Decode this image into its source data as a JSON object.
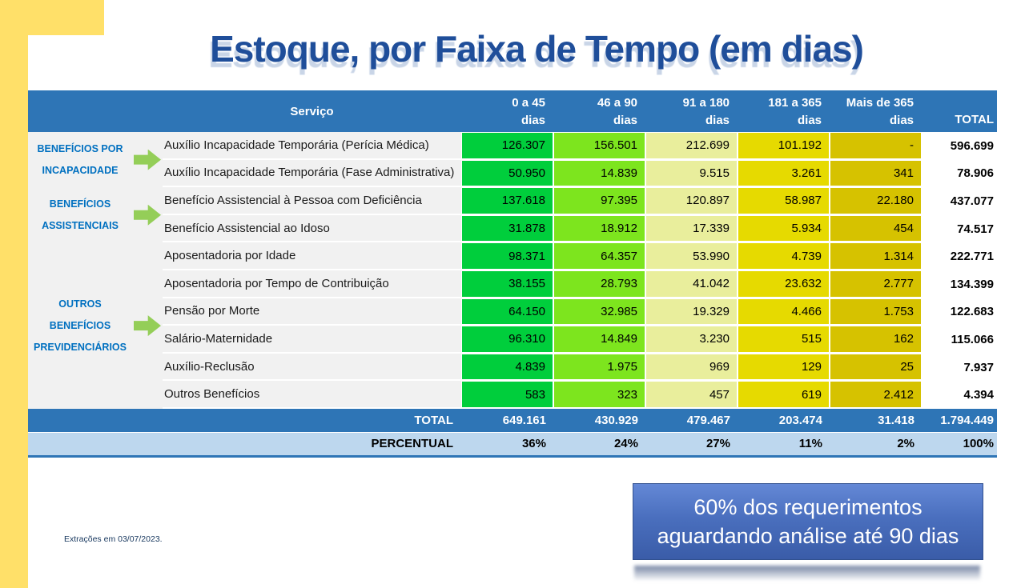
{
  "title": "Estoque, por Faixa de Tempo (em dias)",
  "footnote": "Extrações em 03/07/2023.",
  "callout": {
    "line1": "60% dos requerimentos",
    "line2": "aguardando análise até 90 dias"
  },
  "colors": {
    "accent_yellow": "#FFE069",
    "header_blue": "#2E75B6",
    "percent_blue": "#BDD7EE",
    "category_blue": "#0070C0",
    "title_blue": "#1F4E9A",
    "arrow_green": "#94CE58",
    "callout_blue": "#4472C4",
    "column_colors": [
      "#00CE3C",
      "#7DE51E",
      "#E9EE9C",
      "#E6DA00",
      "#D6C200"
    ]
  },
  "table": {
    "header": {
      "service": "Serviço",
      "columns": [
        {
          "line1": "0 a 45",
          "line2": "dias"
        },
        {
          "line1": "46 a 90",
          "line2": "dias"
        },
        {
          "line1": "91 a 180",
          "line2": "dias"
        },
        {
          "line1": "181 a 365",
          "line2": "dias"
        },
        {
          "line1": "Mais de 365",
          "line2": "dias"
        }
      ],
      "total": "TOTAL"
    },
    "groups": [
      {
        "label_lines": [
          "BENEFÍCIOS POR",
          "INCAPACIDADE"
        ],
        "rows": [
          {
            "service": "Auxílio Incapacidade Temporária (Perícia Médica)",
            "values": [
              "126.307",
              "156.501",
              "212.699",
              "101.192",
              "-"
            ],
            "total": "596.699"
          },
          {
            "service": "Auxílio Incapacidade Temporária (Fase Administrativa)",
            "values": [
              "50.950",
              "14.839",
              "9.515",
              "3.261",
              "341"
            ],
            "total": "78.906"
          }
        ]
      },
      {
        "label_lines": [
          "BENEFÍCIOS",
          "ASSISTENCIAIS"
        ],
        "rows": [
          {
            "service": "Benefício Assistencial à Pessoa com Deficiência",
            "values": [
              "137.618",
              "97.395",
              "120.897",
              "58.987",
              "22.180"
            ],
            "total": "437.077"
          },
          {
            "service": "Benefício Assistencial ao Idoso",
            "values": [
              "31.878",
              "18.912",
              "17.339",
              "5.934",
              "454"
            ],
            "total": "74.517"
          }
        ]
      },
      {
        "label_lines": [
          "OUTROS",
          "BENEFÍCIOS",
          "PREVIDENCIÁRIOS"
        ],
        "rows": [
          {
            "service": "Aposentadoria por Idade",
            "values": [
              "98.371",
              "64.357",
              "53.990",
              "4.739",
              "1.314"
            ],
            "total": "222.771"
          },
          {
            "service": "Aposentadoria por Tempo de Contribuição",
            "values": [
              "38.155",
              "28.793",
              "41.042",
              "23.632",
              "2.777"
            ],
            "total": "134.399"
          },
          {
            "service": "Pensão por Morte",
            "values": [
              "64.150",
              "32.985",
              "19.329",
              "4.466",
              "1.753"
            ],
            "total": "122.683"
          },
          {
            "service": "Salário-Maternidade",
            "values": [
              "96.310",
              "14.849",
              "3.230",
              "515",
              "162"
            ],
            "total": "115.066"
          },
          {
            "service": "Auxílio-Reclusão",
            "values": [
              "4.839",
              "1.975",
              "969",
              "129",
              "25"
            ],
            "total": "7.937"
          },
          {
            "service": "Outros Benefícios",
            "values": [
              "583",
              "323",
              "457",
              "619",
              "2.412"
            ],
            "total": "4.394"
          }
        ]
      }
    ],
    "total_row": {
      "label": "TOTAL",
      "values": [
        "649.161",
        "430.929",
        "479.467",
        "203.474",
        "31.418"
      ],
      "total": "1.794.449"
    },
    "percent_row": {
      "label": "PERCENTUAL",
      "values": [
        "36%",
        "24%",
        "27%",
        "11%",
        "2%"
      ],
      "total": "100%"
    }
  },
  "chart_data": {
    "type": "table",
    "title": "Estoque, por Faixa de Tempo (em dias)",
    "columns": [
      "0 a 45 dias",
      "46 a 90 dias",
      "91 a 180 dias",
      "181 a 365 dias",
      "Mais de 365 dias",
      "TOTAL"
    ],
    "rows": [
      {
        "group": "BENEFÍCIOS POR INCAPACIDADE",
        "service": "Auxílio Incapacidade Temporária (Perícia Médica)",
        "values": [
          126307,
          156501,
          212699,
          101192,
          null
        ],
        "total": 596699
      },
      {
        "group": "BENEFÍCIOS POR INCAPACIDADE",
        "service": "Auxílio Incapacidade Temporária (Fase Administrativa)",
        "values": [
          50950,
          14839,
          9515,
          3261,
          341
        ],
        "total": 78906
      },
      {
        "group": "BENEFÍCIOS ASSISTENCIAIS",
        "service": "Benefício Assistencial à Pessoa com Deficiência",
        "values": [
          137618,
          97395,
          120897,
          58987,
          22180
        ],
        "total": 437077
      },
      {
        "group": "BENEFÍCIOS ASSISTENCIAIS",
        "service": "Benefício Assistencial ao Idoso",
        "values": [
          31878,
          18912,
          17339,
          5934,
          454
        ],
        "total": 74517
      },
      {
        "group": "OUTROS BENEFÍCIOS PREVIDENCIÁRIOS",
        "service": "Aposentadoria por Idade",
        "values": [
          98371,
          64357,
          53990,
          4739,
          1314
        ],
        "total": 222771
      },
      {
        "group": "OUTROS BENEFÍCIOS PREVIDENCIÁRIOS",
        "service": "Aposentadoria por Tempo de Contribuição",
        "values": [
          38155,
          28793,
          41042,
          23632,
          2777
        ],
        "total": 134399
      },
      {
        "group": "OUTROS BENEFÍCIOS PREVIDENCIÁRIOS",
        "service": "Pensão por Morte",
        "values": [
          64150,
          32985,
          19329,
          4466,
          1753
        ],
        "total": 122683
      },
      {
        "group": "OUTROS BENEFÍCIOS PREVIDENCIÁRIOS",
        "service": "Salário-Maternidade",
        "values": [
          96310,
          14849,
          3230,
          515,
          162
        ],
        "total": 115066
      },
      {
        "group": "OUTROS BENEFÍCIOS PREVIDENCIÁRIOS",
        "service": "Auxílio-Reclusão",
        "values": [
          4839,
          1975,
          969,
          129,
          25
        ],
        "total": 7937
      },
      {
        "group": "OUTROS BENEFÍCIOS PREVIDENCIÁRIOS",
        "service": "Outros Benefícios",
        "values": [
          583,
          323,
          457,
          619,
          2412
        ],
        "total": 4394
      }
    ],
    "totals": [
      649161,
      430929,
      479467,
      203474,
      31418,
      1794449
    ],
    "percentuais": [
      "36%",
      "24%",
      "27%",
      "11%",
      "2%",
      "100%"
    ]
  }
}
